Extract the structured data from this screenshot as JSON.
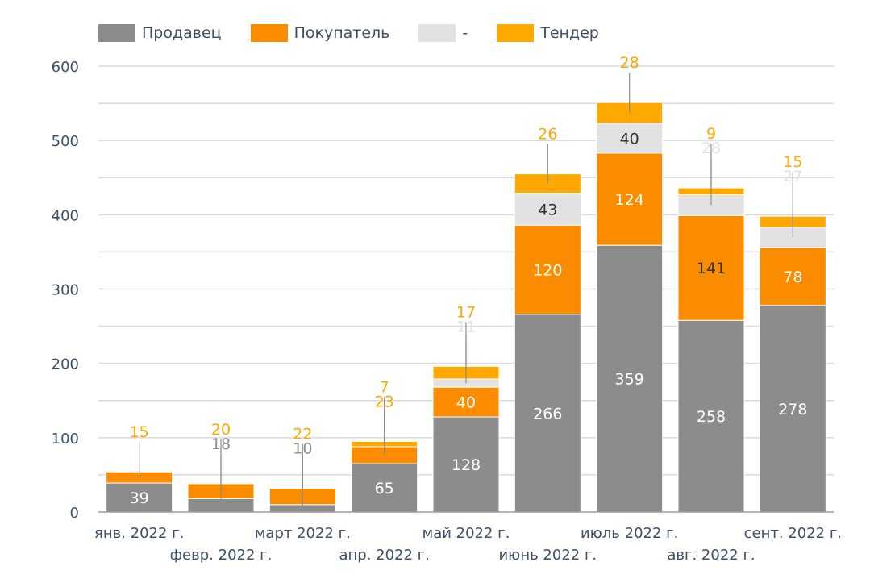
{
  "chart_data": {
    "type": "bar",
    "stacked": true,
    "categories": [
      "янв. 2022 г.",
      "февр. 2022 г.",
      "март 2022 г.",
      "апр. 2022 г.",
      "май 2022 г.",
      "июнь 2022 г.",
      "июль 2022 г.",
      "авг. 2022 г.",
      "сент. 2022 г."
    ],
    "series": [
      {
        "name": "Продавец",
        "color": "#8c8c8c",
        "values": [
          39,
          18,
          10,
          65,
          128,
          266,
          359,
          258,
          278
        ]
      },
      {
        "name": "Покупатель",
        "color": "#fb8c00",
        "values": [
          15,
          20,
          22,
          23,
          40,
          120,
          124,
          141,
          78
        ]
      },
      {
        "name": "-",
        "color": "#e2e2e2",
        "values": [
          0,
          0,
          0,
          0,
          11,
          43,
          40,
          28,
          27
        ]
      },
      {
        "name": "Тендер",
        "color": "#ffa800",
        "values": [
          0,
          0,
          0,
          7,
          17,
          26,
          28,
          9,
          15
        ]
      }
    ],
    "data_labels": [
      {
        "category": 0,
        "series": 0,
        "text": "39",
        "color": "#ffffff"
      },
      {
        "category": 0,
        "series": 1,
        "text": "15",
        "color": "#ffa800",
        "outside": true,
        "above": 0
      },
      {
        "category": 1,
        "series": 0,
        "text": "18",
        "color": "#8c8c8c",
        "outside": true,
        "above": 0
      },
      {
        "category": 1,
        "series": 1,
        "text": "20",
        "color": "#ffa800",
        "outside": true,
        "above": 1
      },
      {
        "category": 2,
        "series": 0,
        "text": "10",
        "color": "#8c8c8c",
        "outside": true,
        "above": 0
      },
      {
        "category": 2,
        "series": 1,
        "text": "22",
        "color": "#ffa800",
        "outside": true,
        "above": 1
      },
      {
        "category": 3,
        "series": 0,
        "text": "65",
        "color": "#ffffff"
      },
      {
        "category": 3,
        "series": 1,
        "text": "23",
        "color": "#ffa800",
        "outside": true,
        "above": 0
      },
      {
        "category": 3,
        "series": 3,
        "text": "7",
        "color": "#ffa800",
        "outside": true,
        "above": 1
      },
      {
        "category": 4,
        "series": 0,
        "text": "128",
        "color": "#ffffff"
      },
      {
        "category": 4,
        "series": 1,
        "text": "40",
        "color": "#ffffff"
      },
      {
        "category": 4,
        "series": 2,
        "text": "11",
        "color": "#e2e2e2",
        "outside": true,
        "above": 0
      },
      {
        "category": 4,
        "series": 3,
        "text": "17",
        "color": "#ffa800",
        "outside": true,
        "above": 1
      },
      {
        "category": 5,
        "series": 0,
        "text": "266",
        "color": "#ffffff"
      },
      {
        "category": 5,
        "series": 1,
        "text": "120",
        "color": "#ffffff"
      },
      {
        "category": 5,
        "series": 2,
        "text": "43",
        "color": "#333333"
      },
      {
        "category": 5,
        "series": 3,
        "text": "26",
        "color": "#ffa800",
        "outside": true,
        "above": 0
      },
      {
        "category": 6,
        "series": 0,
        "text": "359",
        "color": "#ffffff"
      },
      {
        "category": 6,
        "series": 1,
        "text": "124",
        "color": "#ffffff"
      },
      {
        "category": 6,
        "series": 2,
        "text": "40",
        "color": "#333333"
      },
      {
        "category": 6,
        "series": 3,
        "text": "28",
        "color": "#ffa800",
        "outside": true,
        "above": 0
      },
      {
        "category": 7,
        "series": 0,
        "text": "258",
        "color": "#ffffff"
      },
      {
        "category": 7,
        "series": 1,
        "text": "141",
        "color": "#333333"
      },
      {
        "category": 7,
        "series": 2,
        "text": "28",
        "color": "#e2e2e2",
        "outside": true,
        "above": 0
      },
      {
        "category": 7,
        "series": 3,
        "text": "9",
        "color": "#ffa800",
        "outside": true,
        "above": 1
      },
      {
        "category": 8,
        "series": 0,
        "text": "278",
        "color": "#ffffff"
      },
      {
        "category": 8,
        "series": 1,
        "text": "78",
        "color": "#ffffff"
      },
      {
        "category": 8,
        "series": 2,
        "text": "27",
        "color": "#e2e2e2",
        "outside": true,
        "above": 0
      },
      {
        "category": 8,
        "series": 3,
        "text": "15",
        "color": "#ffa800",
        "outside": true,
        "above": 1
      }
    ],
    "ylim": [
      0,
      600
    ],
    "yticks": [
      "0",
      "100",
      "200",
      "300",
      "400",
      "500",
      "600"
    ],
    "grid": true,
    "legend_position": "top-left",
    "title": "",
    "xlabel": "",
    "ylabel": ""
  }
}
